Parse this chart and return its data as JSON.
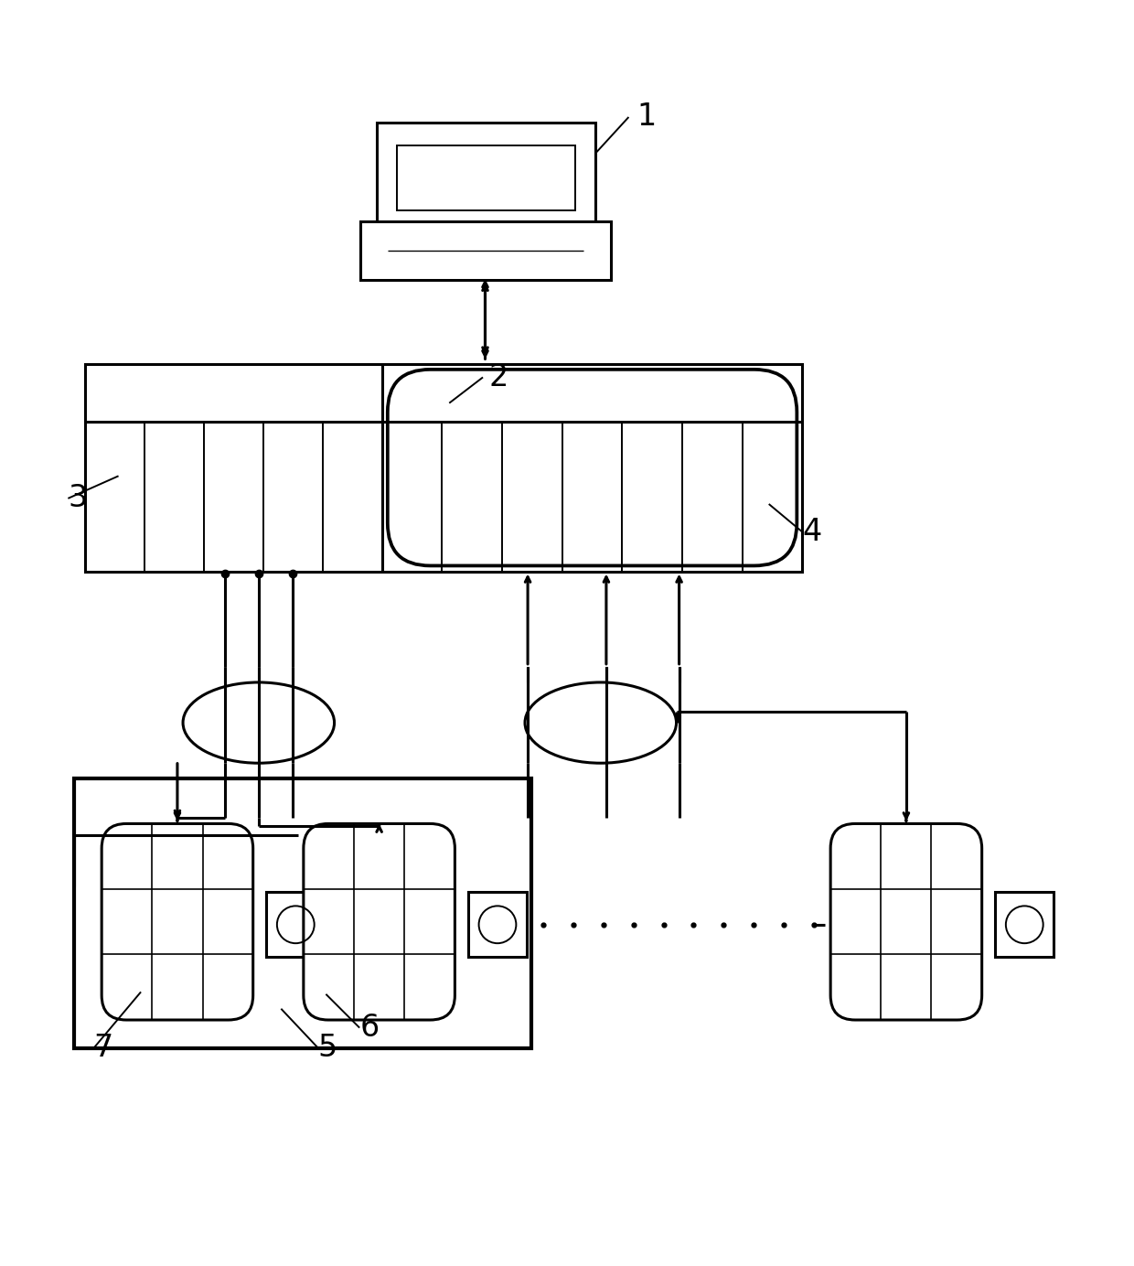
{
  "bg_color": "#ffffff",
  "line_color": "#000000",
  "fig_width": 12.4,
  "fig_height": 13.84
}
